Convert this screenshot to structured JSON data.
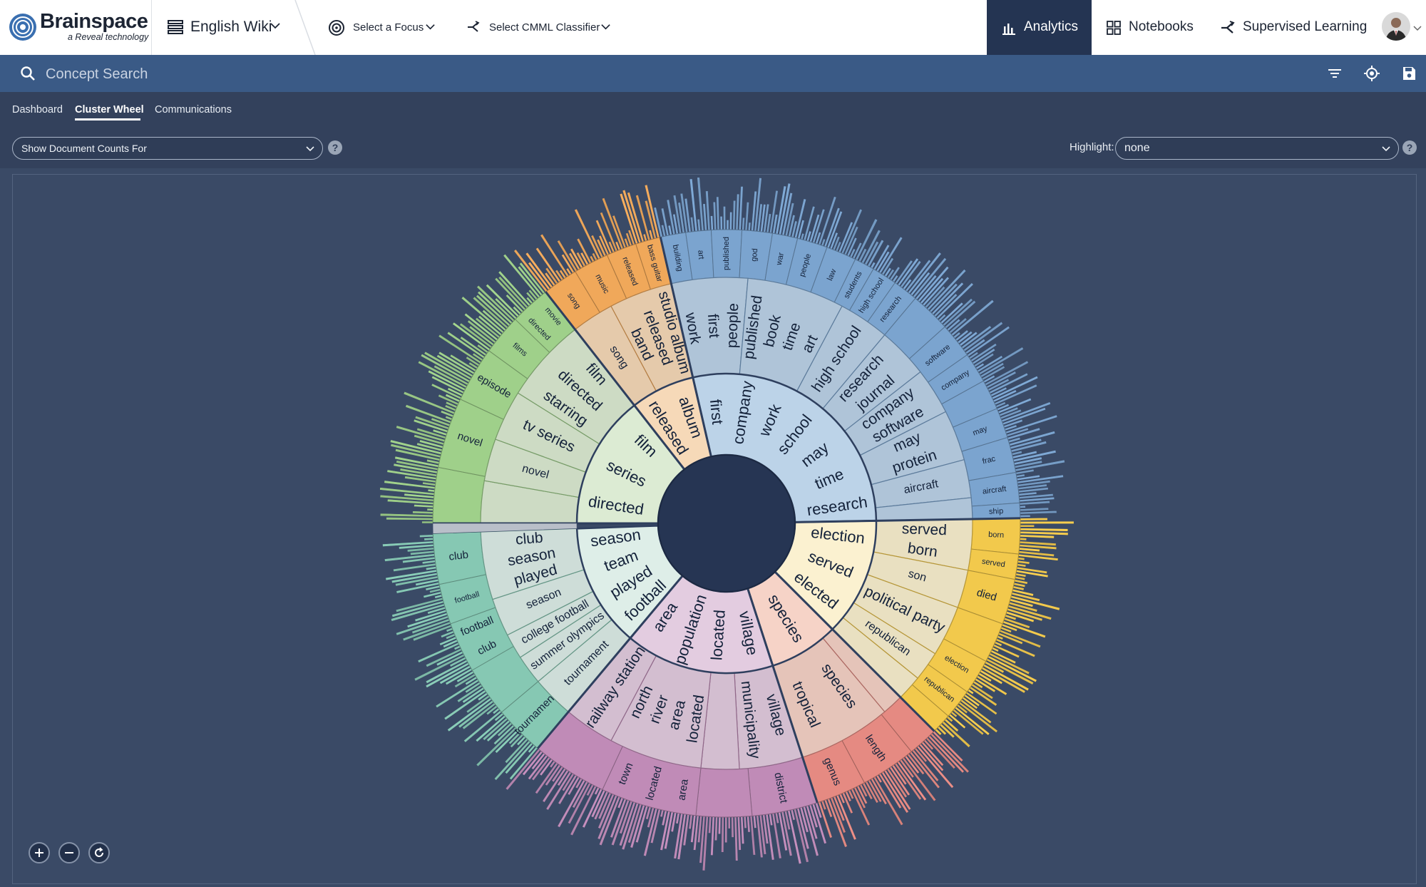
{
  "brand": {
    "name": "Brainspace",
    "tagline": "a Reveal technology"
  },
  "project": {
    "name": "English Wiki"
  },
  "focus": {
    "label": "Select a Focus"
  },
  "classifier": {
    "label": "Select CMML Classifier"
  },
  "nav": [
    {
      "label": "Analytics",
      "icon": "bar-chart-icon",
      "active": true
    },
    {
      "label": "Notebooks",
      "icon": "grid-icon",
      "active": false
    },
    {
      "label": "Supervised Learning",
      "icon": "branch-icon",
      "active": false
    }
  ],
  "search": {
    "placeholder": "Concept Search"
  },
  "subtabs": [
    "Dashboard",
    "Cluster Wheel",
    "Communications"
  ],
  "active_subtab": "Cluster Wheel",
  "doc_counts": {
    "value": "Show Document Counts For"
  },
  "highlight": {
    "label": "Highlight:",
    "value": "none"
  },
  "colors": {
    "header_dark": "#243452",
    "search_bar": "#3a5a86",
    "canvas_bg": "#3a4a66",
    "hub": "#263553"
  },
  "wheel": {
    "center_hub": true,
    "clusters": [
      {
        "id": "blue",
        "color": "#7ba4cf",
        "inner_color": "#bcd3e8",
        "start": -13,
        "end": 89,
        "inner_terms": [
          "first",
          "company",
          "work",
          "school",
          "may",
          "time",
          "research"
        ],
        "mid": [
          {
            "start": -13,
            "end": 5,
            "terms": [
              "work",
              "first",
              "people"
            ]
          },
          {
            "start": 5,
            "end": 28,
            "terms": [
              "published",
              "book",
              "time",
              "art"
            ]
          },
          {
            "start": 28,
            "end": 40,
            "terms": [
              "high school"
            ]
          },
          {
            "start": 40,
            "end": 52,
            "terms": [
              "research",
              "journal"
            ]
          },
          {
            "start": 52,
            "end": 63,
            "terms": [
              "company",
              "software"
            ]
          },
          {
            "start": 63,
            "end": 75,
            "terms": [
              "may",
              "protein"
            ]
          },
          {
            "start": 75,
            "end": 84,
            "terms": [
              "aircraft"
            ]
          },
          {
            "start": 84,
            "end": 89,
            "terms": []
          }
        ],
        "outer": [
          {
            "start": -13,
            "end": -8,
            "terms": [
              "building"
            ]
          },
          {
            "start": -8,
            "end": -3,
            "terms": [
              "art"
            ]
          },
          {
            "start": -3,
            "end": 3,
            "terms": [
              "published"
            ]
          },
          {
            "start": 3,
            "end": 9,
            "terms": [
              "god"
            ]
          },
          {
            "start": 9,
            "end": 14,
            "terms": [
              "war"
            ]
          },
          {
            "start": 14,
            "end": 20,
            "terms": [
              "people"
            ]
          },
          {
            "start": 20,
            "end": 26,
            "terms": [
              "law"
            ]
          },
          {
            "start": 26,
            "end": 30,
            "terms": [
              "students"
            ]
          },
          {
            "start": 30,
            "end": 35,
            "terms": [
              "high school"
            ]
          },
          {
            "start": 35,
            "end": 40,
            "terms": [
              "research"
            ]
          },
          {
            "start": 40,
            "end": 48,
            "terms": []
          },
          {
            "start": 48,
            "end": 55,
            "terms": [
              "software"
            ]
          },
          {
            "start": 55,
            "end": 61,
            "terms": [
              "company"
            ]
          },
          {
            "start": 61,
            "end": 67,
            "terms": []
          },
          {
            "start": 67,
            "end": 73,
            "terms": [
              "may"
            ]
          },
          {
            "start": 73,
            "end": 80,
            "terms": [
              "frac"
            ]
          },
          {
            "start": 80,
            "end": 86,
            "terms": [
              "aircraft"
            ]
          },
          {
            "start": 86,
            "end": 89,
            "terms": [
              "ship"
            ]
          }
        ]
      },
      {
        "id": "yellow",
        "color": "#f2c94c",
        "inner_color": "#fbf1d0",
        "start": 89,
        "end": 135,
        "inner_terms": [
          "election",
          "served",
          "elected"
        ],
        "mid": [
          {
            "start": 89,
            "end": 101,
            "terms": [
              "served",
              "born"
            ]
          },
          {
            "start": 101,
            "end": 110,
            "terms": [
              "son"
            ]
          },
          {
            "start": 110,
            "end": 122,
            "terms": [
              "political party"
            ]
          },
          {
            "start": 122,
            "end": 129,
            "terms": [
              "republican"
            ]
          },
          {
            "start": 129,
            "end": 135,
            "terms": []
          }
        ],
        "outer": [
          {
            "start": 89,
            "end": 96,
            "terms": [
              "born"
            ]
          },
          {
            "start": 96,
            "end": 101,
            "terms": [
              "served"
            ]
          },
          {
            "start": 101,
            "end": 110,
            "terms": [
              "died"
            ]
          },
          {
            "start": 110,
            "end": 118,
            "terms": []
          },
          {
            "start": 118,
            "end": 125,
            "terms": [
              "election"
            ]
          },
          {
            "start": 125,
            "end": 131,
            "terms": [
              "republican"
            ]
          },
          {
            "start": 131,
            "end": 135,
            "terms": []
          }
        ]
      },
      {
        "id": "red",
        "color": "#e58a82",
        "inner_color": "#f6d3c7",
        "start": 135,
        "end": 162,
        "inner_terms": [
          "species"
        ],
        "mid": [
          {
            "start": 135,
            "end": 140,
            "terms": []
          },
          {
            "start": 140,
            "end": 162,
            "terms": [
              "species",
              "tropical"
            ]
          }
        ],
        "outer": [
          {
            "start": 135,
            "end": 141,
            "terms": []
          },
          {
            "start": 141,
            "end": 152,
            "terms": [
              "length"
            ]
          },
          {
            "start": 152,
            "end": 162,
            "terms": [
              "genus"
            ]
          }
        ]
      },
      {
        "id": "purple",
        "color": "#c08bb7",
        "inner_color": "#e3cce0",
        "start": 162,
        "end": 220,
        "inner_terms": [
          "village",
          "located",
          "population",
          "area"
        ],
        "mid": [
          {
            "start": 162,
            "end": 177,
            "terms": [
              "village",
              "municipality"
            ]
          },
          {
            "start": 177,
            "end": 186,
            "terms": []
          },
          {
            "start": 186,
            "end": 208,
            "terms": [
              "located",
              "area",
              "river",
              "north"
            ]
          },
          {
            "start": 208,
            "end": 220,
            "terms": [
              "railway station"
            ]
          }
        ],
        "outer": [
          {
            "start": 162,
            "end": 175,
            "terms": [
              "district"
            ]
          },
          {
            "start": 175,
            "end": 186,
            "terms": []
          },
          {
            "start": 186,
            "end": 205,
            "terms": [
              "area",
              "located",
              "town"
            ]
          },
          {
            "start": 205,
            "end": 220,
            "terms": []
          }
        ]
      },
      {
        "id": "teal",
        "color": "#86c8b3",
        "inner_color": "#deeee8",
        "start": 220,
        "end": 268,
        "inner_terms": [
          "football",
          "played",
          "team",
          "season"
        ],
        "mid": [
          {
            "start": 220,
            "end": 230,
            "terms": [
              "tournament"
            ]
          },
          {
            "start": 230,
            "end": 237,
            "terms": [
              "summer olympics"
            ]
          },
          {
            "start": 237,
            "end": 243,
            "terms": [
              "college football"
            ]
          },
          {
            "start": 243,
            "end": 252,
            "terms": [
              "season"
            ]
          },
          {
            "start": 252,
            "end": 268,
            "terms": [
              "played",
              "season",
              "club"
            ]
          }
        ],
        "outer": [
          {
            "start": 220,
            "end": 230,
            "terms": [
              "tournament"
            ]
          },
          {
            "start": 230,
            "end": 240,
            "terms": []
          },
          {
            "start": 240,
            "end": 250,
            "terms": [
              "club",
              "football"
            ]
          },
          {
            "start": 250,
            "end": 258,
            "terms": [
              "football"
            ]
          },
          {
            "start": 258,
            "end": 268,
            "terms": [
              "club"
            ]
          }
        ]
      },
      {
        "id": "green",
        "color": "#9fd08a",
        "inner_color": "#dcebd3",
        "start": 270,
        "end": 322,
        "inner_terms": [
          "directed",
          "series",
          "film"
        ],
        "mid": [
          {
            "start": 270,
            "end": 280,
            "terms": []
          },
          {
            "start": 280,
            "end": 290,
            "terms": [
              "novel"
            ]
          },
          {
            "start": 290,
            "end": 302,
            "terms": [
              "tv series"
            ]
          },
          {
            "start": 302,
            "end": 322,
            "terms": [
              "starring",
              "directed",
              "film"
            ]
          }
        ],
        "outer": [
          {
            "start": 270,
            "end": 281,
            "terms": []
          },
          {
            "start": 281,
            "end": 295,
            "terms": [
              "novel"
            ]
          },
          {
            "start": 295,
            "end": 306,
            "terms": [
              "episode"
            ]
          },
          {
            "start": 306,
            "end": 314,
            "terms": [
              "films"
            ]
          },
          {
            "start": 314,
            "end": 322,
            "terms": [
              "directed",
              "movie"
            ]
          }
        ]
      },
      {
        "id": "orange",
        "color": "#f0a85a",
        "inner_color": "#f6d9b8",
        "start": 322,
        "end": 347,
        "inner_terms": [
          "released",
          "album"
        ],
        "mid": [
          {
            "start": 322,
            "end": 332,
            "terms": [
              "song"
            ]
          },
          {
            "start": 332,
            "end": 347,
            "terms": [
              "band",
              "released",
              "studio album"
            ]
          }
        ],
        "outer": [
          {
            "start": 322,
            "end": 329,
            "terms": [
              "song"
            ]
          },
          {
            "start": 329,
            "end": 336,
            "terms": [
              "music"
            ]
          },
          {
            "start": 336,
            "end": 342,
            "terms": [
              "released"
            ]
          },
          {
            "start": 342,
            "end": 347,
            "terms": [
              "bass guitar"
            ]
          }
        ]
      }
    ]
  }
}
